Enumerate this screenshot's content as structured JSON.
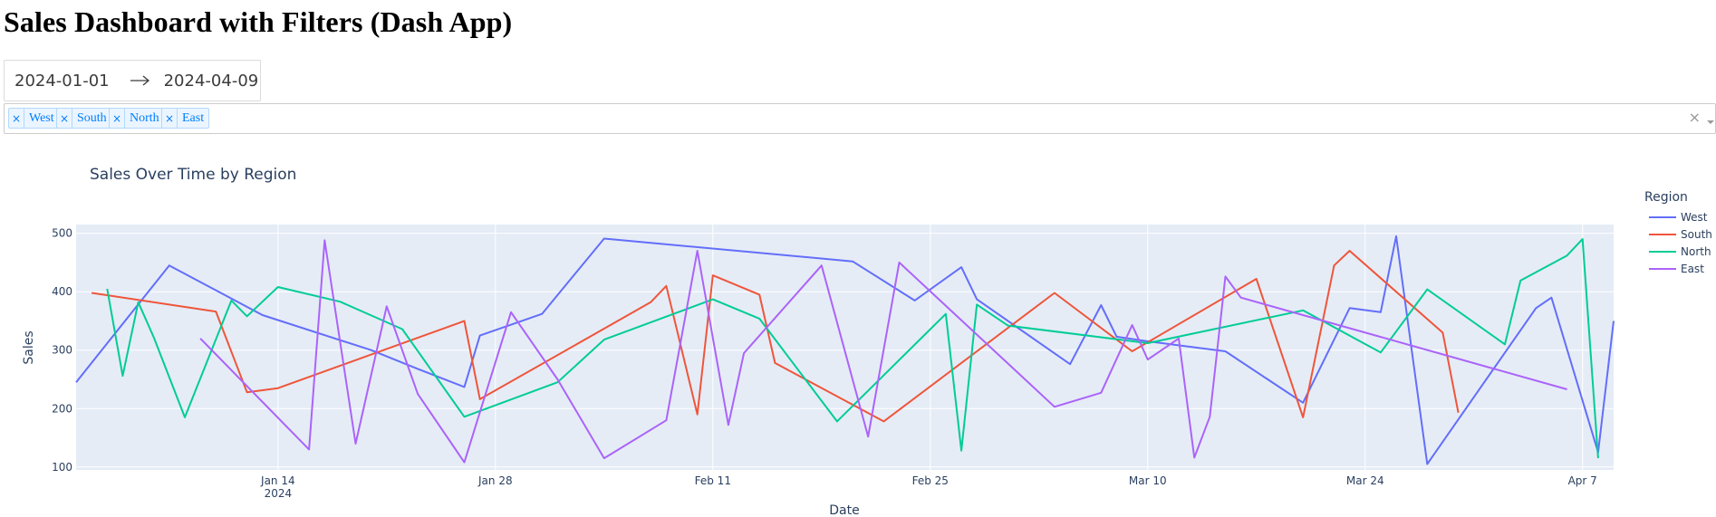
{
  "page": {
    "heading": "Sales Dashboard with Filters (Dash App)"
  },
  "date_picker": {
    "start": "2024-01-01",
    "end": "2024-04-09",
    "arrow_icon": "arrow-right-icon"
  },
  "region_filter": {
    "selected": [
      "West",
      "South",
      "North",
      "East"
    ],
    "remove_glyph": "×",
    "clear_glyph": "×",
    "dropdown_icon": "caret-down-icon"
  },
  "chart_data": {
    "type": "line",
    "title": "Sales Over Time by Region",
    "xlabel": "Date",
    "ylabel": "Sales",
    "xlim": [
      "2024-01-01",
      "2024-04-09"
    ],
    "ylim": [
      95,
      515
    ],
    "x_ticks": [
      {
        "date": "2024-01-14",
        "label": "Jan 14",
        "sublabel": "2024"
      },
      {
        "date": "2024-01-28",
        "label": "Jan 28"
      },
      {
        "date": "2024-02-11",
        "label": "Feb 11"
      },
      {
        "date": "2024-02-25",
        "label": "Feb 25"
      },
      {
        "date": "2024-03-10",
        "label": "Mar 10"
      },
      {
        "date": "2024-03-24",
        "label": "Mar 24"
      },
      {
        "date": "2024-04-07",
        "label": "Apr 7"
      }
    ],
    "y_ticks": [
      100,
      200,
      300,
      400,
      500
    ],
    "grid": true,
    "legend": {
      "title": "Region",
      "placement": "right"
    },
    "series": [
      {
        "name": "West",
        "color": "#636efa",
        "points": [
          [
            "2024-01-01",
            245
          ],
          [
            "2024-01-07",
            445
          ],
          [
            "2024-01-13",
            360
          ],
          [
            "2024-01-20",
            300
          ],
          [
            "2024-01-23",
            268
          ],
          [
            "2024-01-26",
            237
          ],
          [
            "2024-01-27",
            325
          ],
          [
            "2024-01-31",
            362
          ],
          [
            "2024-02-04",
            491
          ],
          [
            "2024-02-20",
            452
          ],
          [
            "2024-02-24",
            385
          ],
          [
            "2024-02-27",
            442
          ],
          [
            "2024-02-28",
            387
          ],
          [
            "2024-03-05",
            276
          ],
          [
            "2024-03-07",
            377
          ],
          [
            "2024-03-08",
            323
          ],
          [
            "2024-03-10",
            315
          ],
          [
            "2024-03-15",
            298
          ],
          [
            "2024-03-20",
            210
          ],
          [
            "2024-03-23",
            372
          ],
          [
            "2024-03-25",
            365
          ],
          [
            "2024-03-26",
            495
          ],
          [
            "2024-03-28",
            105
          ],
          [
            "2024-04-04",
            372
          ],
          [
            "2024-04-05",
            390
          ],
          [
            "2024-04-08",
            125
          ],
          [
            "2024-04-09",
            350
          ]
        ]
      },
      {
        "name": "South",
        "color": "#ef553b",
        "points": [
          [
            "2024-01-02",
            398
          ],
          [
            "2024-01-10",
            366
          ],
          [
            "2024-01-12",
            228
          ],
          [
            "2024-01-14",
            235
          ],
          [
            "2024-01-26",
            350
          ],
          [
            "2024-01-27",
            216
          ],
          [
            "2024-02-07",
            382
          ],
          [
            "2024-02-08",
            410
          ],
          [
            "2024-02-10",
            190
          ],
          [
            "2024-02-11",
            428
          ],
          [
            "2024-02-14",
            395
          ],
          [
            "2024-02-15",
            278
          ],
          [
            "2024-02-22",
            178
          ],
          [
            "2024-03-04",
            398
          ],
          [
            "2024-03-09",
            298
          ],
          [
            "2024-03-17",
            422
          ],
          [
            "2024-03-20",
            185
          ],
          [
            "2024-03-22",
            445
          ],
          [
            "2024-03-23",
            470
          ],
          [
            "2024-03-29",
            330
          ],
          [
            "2024-03-30",
            193
          ]
        ]
      },
      {
        "name": "North",
        "color": "#00cc96",
        "points": [
          [
            "2024-01-03",
            405
          ],
          [
            "2024-01-04",
            256
          ],
          [
            "2024-01-05",
            382
          ],
          [
            "2024-01-06",
            322
          ],
          [
            "2024-01-08",
            185
          ],
          [
            "2024-01-11",
            385
          ],
          [
            "2024-01-12",
            358
          ],
          [
            "2024-01-14",
            408
          ],
          [
            "2024-01-18",
            383
          ],
          [
            "2024-01-22",
            336
          ],
          [
            "2024-01-26",
            186
          ],
          [
            "2024-02-01",
            245
          ],
          [
            "2024-02-04",
            318
          ],
          [
            "2024-02-11",
            387
          ],
          [
            "2024-02-14",
            354
          ],
          [
            "2024-02-19",
            178
          ],
          [
            "2024-02-26",
            362
          ],
          [
            "2024-02-27",
            128
          ],
          [
            "2024-02-28",
            378
          ],
          [
            "2024-03-01",
            342
          ],
          [
            "2024-03-10",
            312
          ],
          [
            "2024-03-20",
            368
          ],
          [
            "2024-03-25",
            296
          ],
          [
            "2024-03-28",
            404
          ],
          [
            "2024-04-02",
            310
          ],
          [
            "2024-04-03",
            419
          ],
          [
            "2024-04-06",
            462
          ],
          [
            "2024-04-07",
            490
          ],
          [
            "2024-04-08",
            115
          ]
        ]
      },
      {
        "name": "East",
        "color": "#ab63fa",
        "points": [
          [
            "2024-01-09",
            320
          ],
          [
            "2024-01-16",
            130
          ],
          [
            "2024-01-17",
            488
          ],
          [
            "2024-01-19",
            140
          ],
          [
            "2024-01-21",
            375
          ],
          [
            "2024-01-23",
            225
          ],
          [
            "2024-01-26",
            108
          ],
          [
            "2024-01-29",
            365
          ],
          [
            "2024-02-01",
            250
          ],
          [
            "2024-02-04",
            115
          ],
          [
            "2024-02-08",
            180
          ],
          [
            "2024-02-10",
            470
          ],
          [
            "2024-02-12",
            172
          ],
          [
            "2024-02-13",
            295
          ],
          [
            "2024-02-18",
            445
          ],
          [
            "2024-02-21",
            152
          ],
          [
            "2024-02-23",
            450
          ],
          [
            "2024-03-04",
            203
          ],
          [
            "2024-03-07",
            227
          ],
          [
            "2024-03-09",
            343
          ],
          [
            "2024-03-10",
            284
          ],
          [
            "2024-03-12",
            320
          ],
          [
            "2024-03-13",
            116
          ],
          [
            "2024-03-14",
            186
          ],
          [
            "2024-03-15",
            426
          ],
          [
            "2024-03-16",
            390
          ],
          [
            "2024-04-06",
            233
          ]
        ]
      }
    ]
  }
}
